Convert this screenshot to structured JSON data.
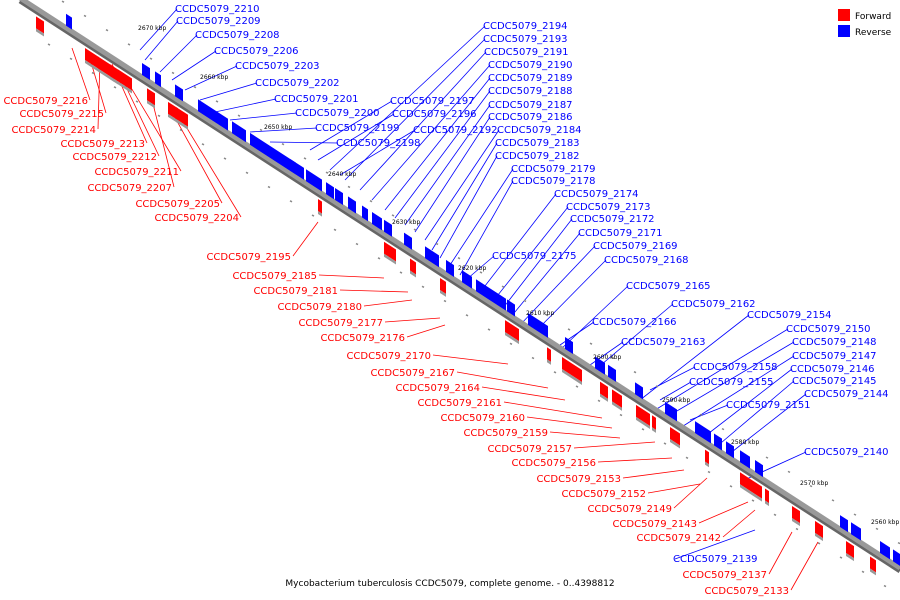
{
  "caption": "Mycobacterium tuberculosis CCDC5079, complete genome. - 0..4398812",
  "legend": [
    {
      "label": "Forward",
      "color": "#ff0000"
    },
    {
      "label": "Reverse",
      "color": "#0000ff"
    }
  ],
  "colors": {
    "forward": "#ff0000",
    "reverse": "#0000ff",
    "axis": "#999999"
  },
  "ticks": [
    "2670 kbp",
    "2660 kbp",
    "2650 kbp",
    "2640 kbp",
    "2630 kbp",
    "2620 kbp",
    "2610 kbp",
    "2600 kbp",
    "2590 kbp",
    "2580 kbp",
    "2570 kbp",
    "2560 kbp"
  ],
  "reverse_labels": [
    "CCDC5079_2210",
    "CCDC5079_2209",
    "CCDC5079_2208",
    "CCDC5079_2206",
    "CCDC5079_2203",
    "CCDC5079_2202",
    "CCDC5079_2201",
    "CCDC5079_2200",
    "CCDC5079_2199",
    "CCDC5079_2198",
    "CCDC5079_2194",
    "CCDC5079_2193",
    "CCDC5079_2191",
    "CCDC5079_2190",
    "CCDC5079_2189",
    "CCDC5079_2188",
    "CCDC5079_2197",
    "CCDC5079_2187",
    "CCDC5079_2196",
    "CCDC5079_2186",
    "CCDC5079_2192",
    "CCDC5079_2184",
    "CCDC5079_2183",
    "CCDC5079_2182",
    "CCDC5079_2179",
    "CCDC5079_2178",
    "CCDC5079_2174",
    "CCDC5079_2173",
    "CCDC5079_2172",
    "CCDC5079_2171",
    "CCDC5079_2169",
    "CCDC5079_2175",
    "CCDC5079_2168",
    "CCDC5079_2165",
    "CCDC5079_2162",
    "CCDC5079_2166",
    "CCDC5079_2154",
    "CCDC5079_2150",
    "CCDC5079_2163",
    "CCDC5079_2148",
    "CCDC5079_2147",
    "CCDC5079_2158",
    "CCDC5079_2146",
    "CCDC5079_2155",
    "CCDC5079_2145",
    "CCDC5079_2144",
    "CCDC5079_2151",
    "CCDC5079_2140",
    "CCDC5079_2139"
  ],
  "forward_labels": [
    "CCDC5079_2216",
    "CCDC5079_2215",
    "CCDC5079_2214",
    "CCDC5079_2213",
    "CCDC5079_2212",
    "CCDC5079_2211",
    "CCDC5079_2207",
    "CCDC5079_2205",
    "CCDC5079_2204",
    "CCDC5079_2195",
    "CCDC5079_2185",
    "CCDC5079_2181",
    "CCDC5079_2180",
    "CCDC5079_2177",
    "CCDC5079_2176",
    "CCDC5079_2170",
    "CCDC5079_2167",
    "CCDC5079_2164",
    "CCDC5079_2161",
    "CCDC5079_2160",
    "CCDC5079_2159",
    "CCDC5079_2157",
    "CCDC5079_2156",
    "CCDC5079_2153",
    "CCDC5079_2152",
    "CCDC5079_2149",
    "CCDC5079_2143",
    "CCDC5079_2142",
    "CCDC5079_2137",
    "CCDC5079_2133"
  ]
}
